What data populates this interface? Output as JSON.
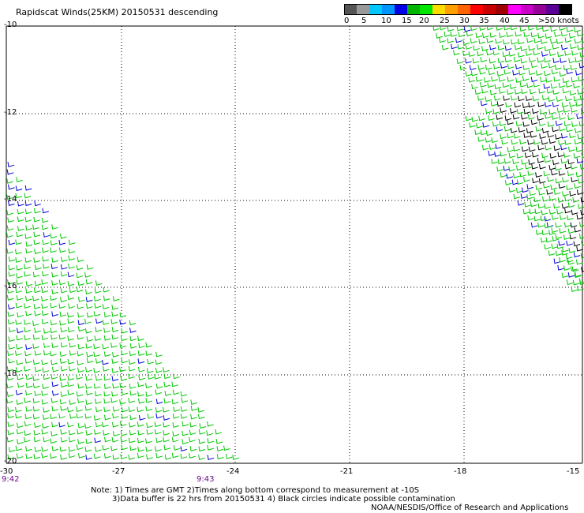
{
  "title": "Rapidscat Winds(25KM) 20150531 descending",
  "legend": {
    "colors": [
      "#555555",
      "#999999",
      "#00c8ff",
      "#0096ff",
      "#0000e6",
      "#00b400",
      "#00e600",
      "#ffdc00",
      "#ffa000",
      "#ff6400",
      "#ff0000",
      "#c80000",
      "#a00000",
      "#ff00ff",
      "#c800c8",
      "#960096",
      "#5a0096",
      "#000000"
    ],
    "labels": [
      "0",
      "5",
      "10",
      "15",
      "20",
      "25",
      "30",
      "35",
      "40",
      "45",
      ">50 knots"
    ]
  },
  "map": {
    "lat_labels": [
      "-10",
      "-12",
      "-14",
      "-16",
      "-18",
      "-20"
    ],
    "lon_labels": [
      "-30",
      "-27",
      "-24",
      "-21",
      "-18",
      "-15"
    ],
    "lon_range": [
      -30,
      -15
    ],
    "lat_range": [
      -10,
      -20
    ],
    "grid": true,
    "time_labels": [
      "9:42",
      "9:43"
    ],
    "barb_colors": {
      "green": "#00c800",
      "blue": "#0000dc",
      "black": "#000000",
      "yellow": "#ffdc00"
    }
  },
  "notes": [
    "Note: 1) Times are GMT 2)Times along bottom correspond to measurement at -10S",
    "3)Data buffer is 22 hrs from 20150531 4) Black circles indicate possible contamination"
  ],
  "credit": "NOAA/NESDIS/Office of Research and Applications"
}
